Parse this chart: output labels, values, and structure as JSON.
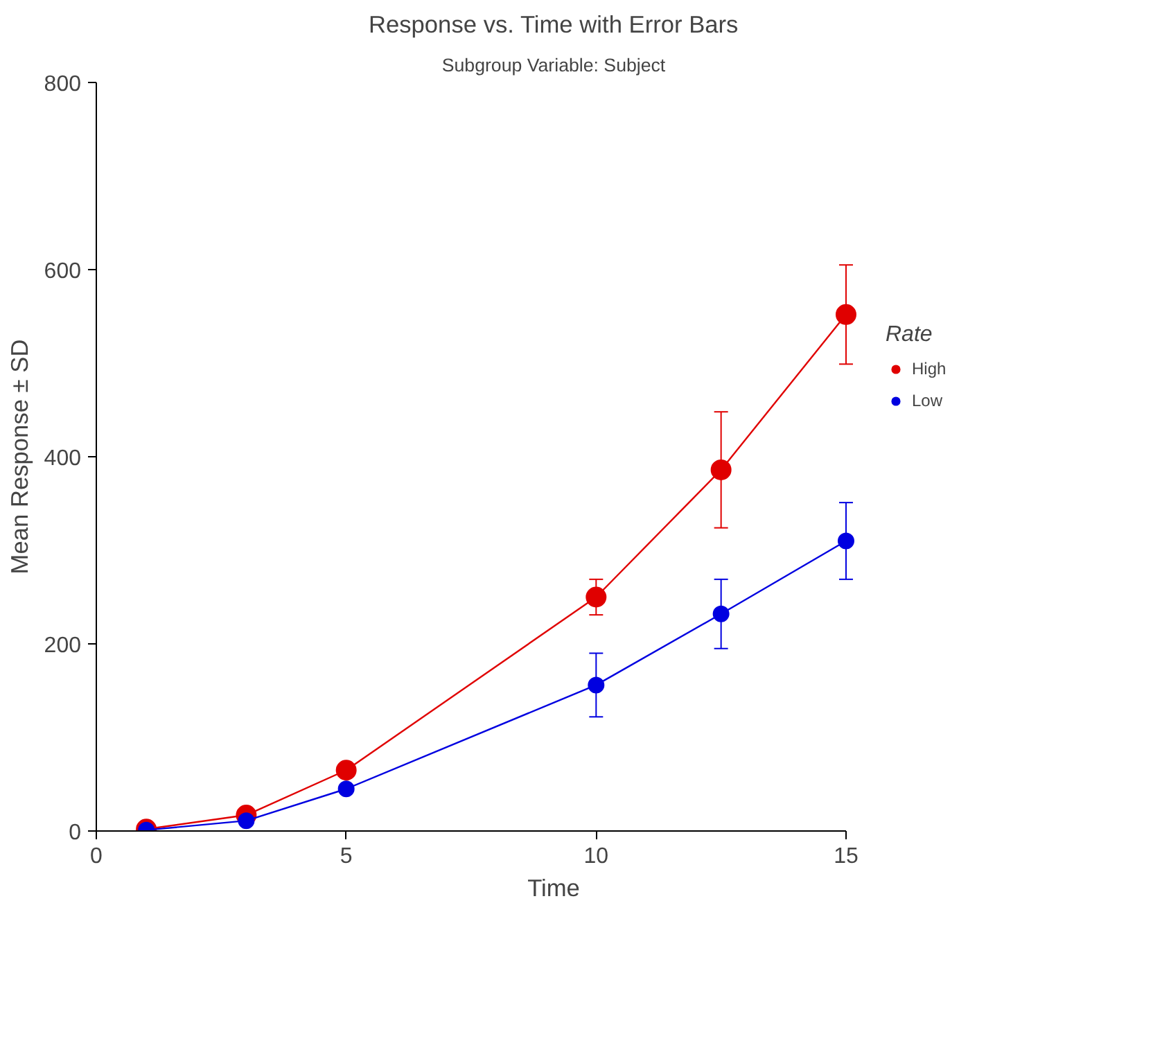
{
  "chart_data": {
    "type": "line",
    "title": "Response vs. Time with Error Bars",
    "subtitle": "Subgroup Variable: Subject",
    "xlabel": "Time",
    "ylabel": "Mean Response ± SD",
    "legend_title": "Rate",
    "x": [
      1,
      3,
      5,
      10,
      12.5,
      15
    ],
    "series": [
      {
        "name": "High",
        "color": "#e00000",
        "values": [
          2,
          17,
          65,
          250,
          386,
          552
        ],
        "errors": [
          null,
          null,
          null,
          19,
          62,
          53
        ]
      },
      {
        "name": "Low",
        "color": "#0000e0",
        "values": [
          1,
          11,
          45,
          156,
          232,
          310
        ],
        "errors": [
          null,
          null,
          null,
          34,
          37,
          41
        ]
      }
    ],
    "xlim": [
      0,
      15
    ],
    "ylim": [
      0,
      800
    ],
    "xticks": [
      0,
      5,
      10,
      15
    ],
    "yticks": [
      0,
      200,
      400,
      600,
      800
    ],
    "grid": false,
    "legend": "right",
    "marker": "circle",
    "line_style": "solid"
  }
}
